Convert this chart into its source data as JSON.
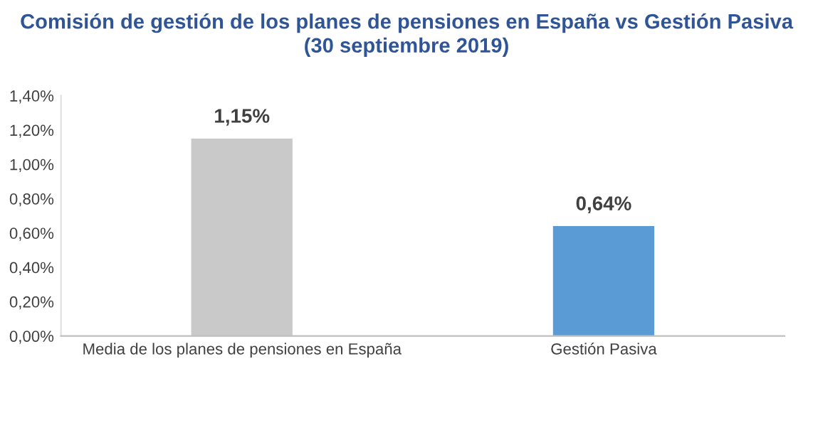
{
  "chart_data": {
    "type": "bar",
    "title": "Comisión de gestión de los planes de pensiones en España vs Gestión Pasiva\n(30 septiembre 2019)",
    "categories": [
      "Media de los planes de pensiones en España",
      "Gestión Pasiva"
    ],
    "values": [
      1.15,
      0.64
    ],
    "colors": [
      "#c9c9c9",
      "#5b9bd5"
    ],
    "value_labels": [
      "1,15%",
      "0,64%"
    ],
    "ylim": [
      0,
      1.4
    ],
    "yticks": [
      {
        "value": 0,
        "label": "0,00%"
      },
      {
        "value": 0.2,
        "label": "0,20%"
      },
      {
        "value": 0.4,
        "label": "0,40%"
      },
      {
        "value": 0.6,
        "label": "0,60%"
      },
      {
        "value": 0.8,
        "label": "0,80%"
      },
      {
        "value": 1.0,
        "label": "1,00%"
      },
      {
        "value": 1.2,
        "label": "1,20%"
      },
      {
        "value": 1.4,
        "label": "1,40%"
      }
    ],
    "grid": false,
    "legend": false
  }
}
